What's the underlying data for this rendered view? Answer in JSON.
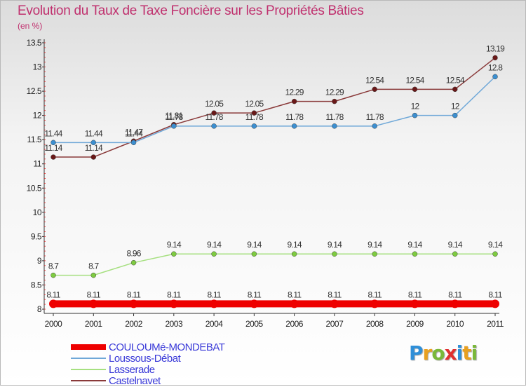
{
  "title": "Evolution du Taux de Taxe Foncière sur les Propriétés Bâties",
  "unit_label": "(en %)",
  "logo": {
    "letters": [
      {
        "char": "P",
        "color": "#2f8fd8"
      },
      {
        "char": "r",
        "color": "#e8a020"
      },
      {
        "char": "o",
        "color": "#7ab83a"
      },
      {
        "char": "x",
        "color": "#e03030"
      },
      {
        "char": "i",
        "color": "#2f8fd8"
      },
      {
        "char": "t",
        "color": "#e8a020"
      },
      {
        "char": "i",
        "color": "#7ab83a"
      }
    ]
  },
  "chart_data": {
    "type": "line",
    "x": [
      "2000",
      "2001",
      "2002",
      "2003",
      "2004",
      "2005",
      "2006",
      "2007",
      "2008",
      "2009",
      "2010",
      "2011"
    ],
    "ylim": [
      8,
      13.5
    ],
    "yticks": [
      "8",
      "8.5",
      "9",
      "9.5",
      "10",
      "10.5",
      "11",
      "11.5",
      "12",
      "12.5",
      "13",
      "13.5"
    ],
    "grid": false,
    "legend_position": "bottom-left",
    "series": [
      {
        "name": "COULOUMé-MONDEBAT",
        "color": "#ee0000",
        "width": 10,
        "values": [
          8.11,
          8.11,
          8.11,
          8.11,
          8.11,
          8.11,
          8.11,
          8.11,
          8.11,
          8.11,
          8.11,
          8.11
        ],
        "labels": [
          "8.11",
          "8.11",
          "8.11",
          "8.11",
          "8.11",
          "8.11",
          "8.11",
          "8.11",
          "8.11",
          "8.11",
          "8.11",
          "8.11"
        ]
      },
      {
        "name": "Loussous-Débat",
        "color": "#6fa8d8",
        "width": 1.5,
        "marker": "#3c8fd0",
        "values": [
          11.44,
          11.44,
          11.44,
          11.78,
          11.78,
          11.78,
          11.78,
          11.78,
          11.78,
          12,
          12,
          12.8
        ],
        "labels": [
          "11.44",
          "11.44",
          "11.44",
          "11.78",
          "11.78",
          "11.78",
          "11.78",
          "11.78",
          "11.78",
          "12",
          "12",
          "12.8"
        ]
      },
      {
        "name": "Lasserade",
        "color": "#a6e080",
        "width": 1.5,
        "marker": "#7ecb40",
        "values": [
          8.7,
          8.7,
          8.96,
          9.14,
          9.14,
          9.14,
          9.14,
          9.14,
          9.14,
          9.14,
          9.14,
          9.14
        ],
        "labels": [
          "8.7",
          "8.7",
          "8.96",
          "9.14",
          "9.14",
          "9.14",
          "9.14",
          "9.14",
          "9.14",
          "9.14",
          "9.14",
          "9.14"
        ]
      },
      {
        "name": "Castelnavet",
        "color": "#8a3a3a",
        "width": 1.5,
        "marker": "#6a1818",
        "values": [
          11.14,
          11.14,
          11.47,
          11.81,
          12.05,
          12.05,
          12.29,
          12.29,
          12.54,
          12.54,
          12.54,
          13.19
        ],
        "labels": [
          "11.14",
          "11.14",
          "11.47",
          "11.81",
          "12.05",
          "12.05",
          "12.29",
          "12.29",
          "12.54",
          "12.54",
          "12.54",
          "13.19"
        ]
      }
    ]
  }
}
